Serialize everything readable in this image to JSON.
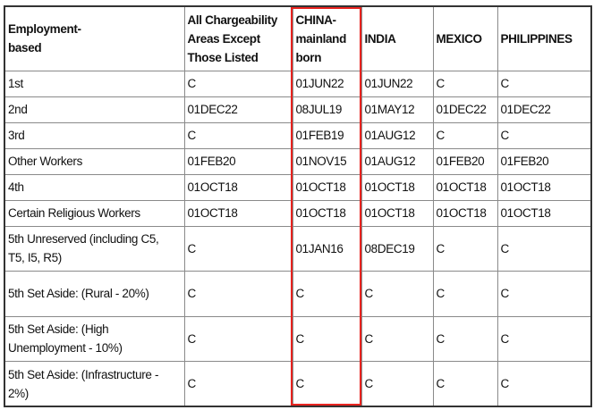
{
  "table": {
    "headers": [
      "Employment-based",
      "All Chargeability Areas Except Those Listed",
      "CHINA-mainland born",
      "INDIA",
      "MEXICO",
      "PHILIPPINES"
    ],
    "rows": [
      [
        "1st",
        "C",
        "01JUN22",
        "01JUN22",
        "C",
        "C"
      ],
      [
        "2nd",
        "01DEC22",
        "08JUL19",
        "01MAY12",
        "01DEC22",
        "01DEC22"
      ],
      [
        "3rd",
        "C",
        "01FEB19",
        "01AUG12",
        "C",
        "C"
      ],
      [
        "Other Workers",
        "01FEB20",
        "01NOV15",
        "01AUG12",
        "01FEB20",
        "01FEB20"
      ],
      [
        "4th",
        "01OCT18",
        "01OCT18",
        "01OCT18",
        "01OCT18",
        "01OCT18"
      ],
      [
        "Certain Religious Workers",
        "01OCT18",
        "01OCT18",
        "01OCT18",
        "01OCT18",
        "01OCT18"
      ],
      [
        "5th Unreserved (including C5, T5, I5, R5)",
        "C",
        "01JAN16",
        "08DEC19",
        "C",
        "C"
      ],
      [
        "5th Set Aside: (Rural - 20%)",
        "C",
        "C",
        "C",
        "C",
        "C"
      ],
      [
        "5th Set Aside: (High Unemployment - 10%)",
        "C",
        "C",
        "C",
        "C",
        "C"
      ],
      [
        "5th Set Aside: (Infrastructure - 2%)",
        "C",
        "C",
        "C",
        "C",
        "C"
      ]
    ]
  },
  "highlight_color": "#e8231f"
}
